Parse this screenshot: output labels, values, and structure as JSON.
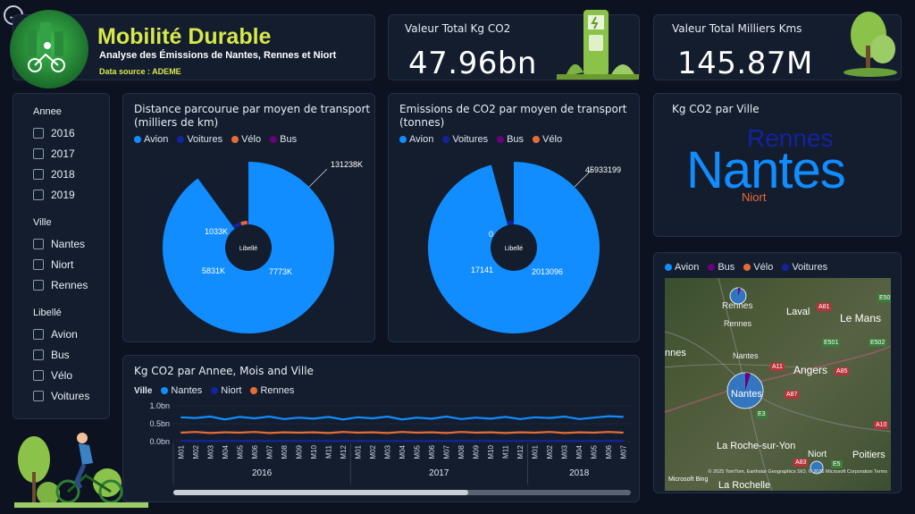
{
  "header": {
    "title": "Mobilité Durable",
    "subtitle": "Analyse des Émissions de Nantes, Rennes et Niort",
    "source": "Data source : ADEME"
  },
  "kpi1": {
    "label": "Valeur Total Kg CO2",
    "value": "47.96bn"
  },
  "kpi2": {
    "label": "Valeur Total Milliers Kms",
    "value": "145.87M"
  },
  "slicers": {
    "annee": {
      "title": "Annee",
      "items": [
        "2016",
        "2017",
        "2018",
        "2019"
      ]
    },
    "ville": {
      "title": "Ville",
      "items": [
        "Nantes",
        "Niort",
        "Rennes"
      ]
    },
    "libelle": {
      "title": "Libellé",
      "items": [
        "Avion",
        "Bus",
        "Vélo",
        "Voitures"
      ]
    }
  },
  "colors": {
    "avion": "#118dff",
    "voitures": "#12239e",
    "velo": "#e66c37",
    "bus": "#6b007b",
    "nantes": "#118dff",
    "niort": "#12239e",
    "rennes": "#e66c37"
  },
  "distance_chart": {
    "title": "Distance parcourue par moyen de transport (milliers de km)",
    "legend": [
      "Avion",
      "Voitures",
      "Vélo",
      "Bus"
    ],
    "center_label": "Libellé",
    "labels": {
      "avion": "131238K",
      "voitures": "7773K",
      "velo": "5831K",
      "bus": "1033K"
    }
  },
  "emission_chart": {
    "title": "Emissions de CO2 par moyen de transport (tonnes)",
    "legend": [
      "Avion",
      "Voitures",
      "Bus",
      "Vélo"
    ],
    "center_label": "Libellé",
    "labels": {
      "avion": "45933199",
      "voitures": "2013096",
      "bus": "17141",
      "velo": "0"
    }
  },
  "wordcloud": {
    "title": "Kg CO2 par Ville",
    "words": [
      "Rennes",
      "Nantes",
      "Niort"
    ]
  },
  "map": {
    "legend": [
      "Avion",
      "Bus",
      "Vélo",
      "Voitures"
    ],
    "places": [
      "Rennes",
      "Laval",
      "Le Mans",
      "Nantes",
      "Angers",
      "La Roche-sur-Yon",
      "Niort",
      "Poitiers",
      "La Rochelle",
      "nnes"
    ],
    "road_labels": [
      "E50",
      "A81",
      "A11",
      "E501",
      "E502",
      "A85",
      "A87",
      "E3",
      "A10",
      "A83",
      "E5"
    ],
    "attribution": "© 2025 TomTom, Earthstar Geographics SIO, © 2025 Microsoft Corporation Terms",
    "bing": "Microsoft Bing"
  },
  "line_chart": {
    "title": "Kg CO2 par Annee, Mois and Ville",
    "legend_title": "Ville",
    "legend": [
      "Nantes",
      "Niort",
      "Rennes"
    ],
    "y_ticks": [
      "1.0bn",
      "0.5bn",
      "0.0bn"
    ],
    "months": [
      "M01",
      "M02",
      "M03",
      "M04",
      "M05",
      "M06",
      "M07",
      "M08",
      "M09",
      "M10",
      "M11",
      "M12",
      "M01",
      "M02",
      "M03",
      "M04",
      "M05",
      "M06",
      "M07",
      "M08",
      "M09",
      "M10",
      "M11",
      "M12",
      "M01",
      "M02",
      "M03",
      "M04",
      "M05",
      "M06",
      "M07"
    ],
    "years": [
      "2016",
      "2017",
      "2018"
    ]
  },
  "chart_data": [
    {
      "type": "pie",
      "title": "Distance parcourue par moyen de transport (milliers de km)",
      "categories": [
        "Avion",
        "Voitures",
        "Vélo",
        "Bus"
      ],
      "values": [
        131238,
        7773,
        5831,
        1033
      ]
    },
    {
      "type": "pie",
      "title": "Emissions de CO2 par moyen de transport (tonnes)",
      "categories": [
        "Avion",
        "Voitures",
        "Bus",
        "Vélo"
      ],
      "values": [
        45933199,
        2013096,
        17141,
        0
      ]
    },
    {
      "type": "line",
      "title": "Kg CO2 par Annee, Mois and Ville",
      "ylim": [
        0,
        1.0
      ],
      "series": [
        {
          "name": "Nantes",
          "values": [
            0.68,
            0.66,
            0.7,
            0.62,
            0.69,
            0.65,
            0.7,
            0.63,
            0.67,
            0.64,
            0.69,
            0.62,
            0.68,
            0.65,
            0.7,
            0.62,
            0.67,
            0.64,
            0.7,
            0.63,
            0.67,
            0.64,
            0.69,
            0.63,
            0.68,
            0.66,
            0.7,
            0.63,
            0.67,
            0.71,
            0.69
          ]
        },
        {
          "name": "Niort",
          "values": [
            0.02,
            0.02,
            0.02,
            0.02,
            0.02,
            0.02,
            0.02,
            0.02,
            0.02,
            0.02,
            0.02,
            0.02,
            0.02,
            0.02,
            0.02,
            0.02,
            0.02,
            0.02,
            0.02,
            0.02,
            0.02,
            0.02,
            0.02,
            0.02,
            0.02,
            0.02,
            0.02,
            0.02,
            0.02,
            0.02,
            0.02
          ]
        },
        {
          "name": "Rennes",
          "values": [
            0.25,
            0.27,
            0.24,
            0.26,
            0.25,
            0.27,
            0.24,
            0.26,
            0.25,
            0.26,
            0.24,
            0.27,
            0.25,
            0.26,
            0.24,
            0.27,
            0.25,
            0.26,
            0.24,
            0.27,
            0.25,
            0.26,
            0.24,
            0.26,
            0.25,
            0.27,
            0.24,
            0.26,
            0.25,
            0.27,
            0.25
          ]
        }
      ]
    }
  ]
}
